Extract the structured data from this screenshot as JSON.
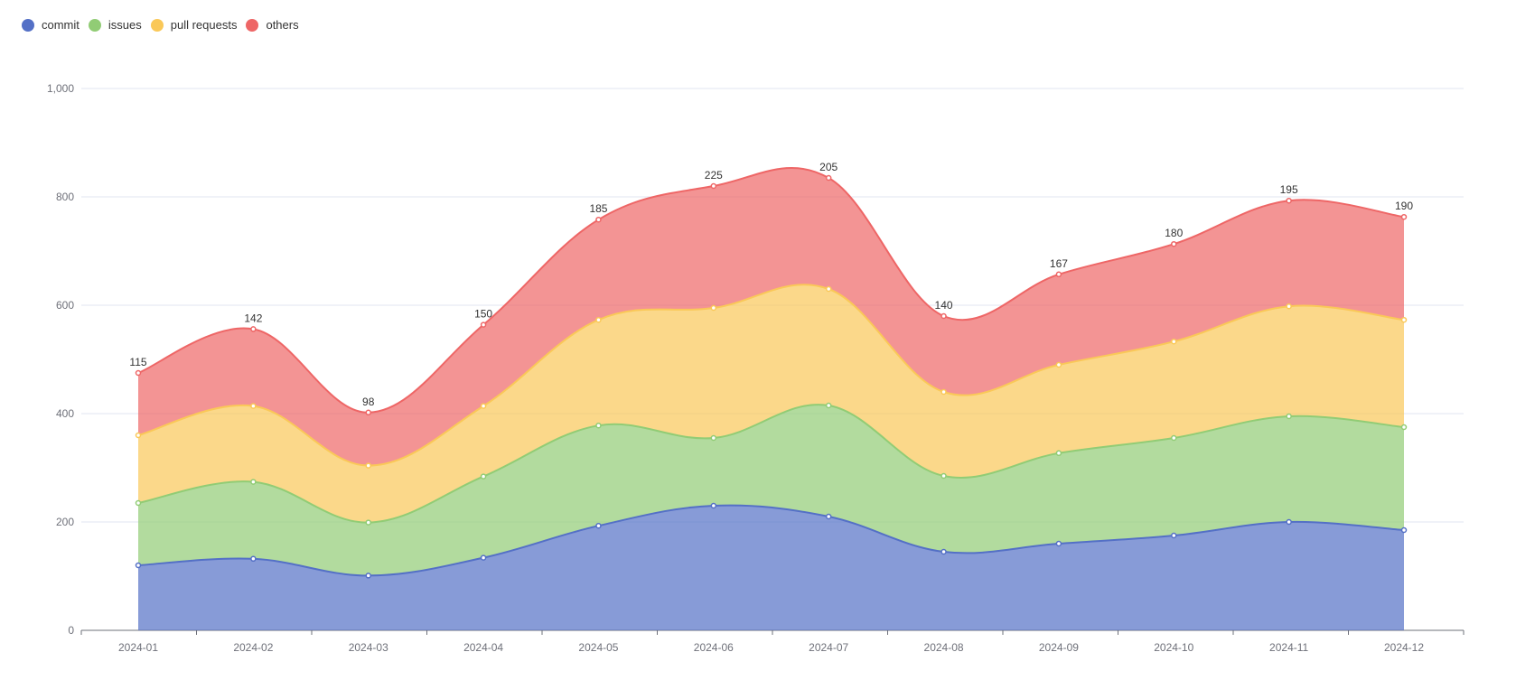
{
  "chart_data": {
    "type": "area",
    "stacked": true,
    "title": "",
    "xlabel": "",
    "ylabel": "",
    "ylim": [
      0,
      1000
    ],
    "yticks": [
      0,
      200,
      400,
      600,
      800,
      1000
    ],
    "ytick_labels": [
      "0",
      "200",
      "400",
      "600",
      "800",
      "1,000"
    ],
    "grid": true,
    "legend_position": "top-left",
    "categories": [
      "2024-01",
      "2024-02",
      "2024-03",
      "2024-04",
      "2024-05",
      "2024-06",
      "2024-07",
      "2024-08",
      "2024-09",
      "2024-10",
      "2024-11",
      "2024-12"
    ],
    "series": [
      {
        "name": "commit",
        "color": "#5470c6",
        "values": [
          120,
          132,
          101,
          134,
          193,
          230,
          210,
          145,
          160,
          175,
          200,
          185
        ]
      },
      {
        "name": "issues",
        "color": "#91cc75",
        "values": [
          115,
          142,
          98,
          150,
          185,
          125,
          205,
          140,
          167,
          180,
          195,
          190
        ]
      },
      {
        "name": "pull requests",
        "color": "#fac858",
        "values": [
          125,
          140,
          105,
          130,
          195,
          240,
          215,
          155,
          163,
          178,
          203,
          198
        ]
      },
      {
        "name": "others",
        "color": "#ee6666",
        "values": [
          115,
          142,
          98,
          150,
          185,
          225,
          205,
          140,
          167,
          180,
          195,
          190
        ]
      }
    ],
    "top_labels": [
      "115",
      "142",
      "98",
      "150",
      "185",
      "225",
      "205",
      "140",
      "167",
      "180",
      "195",
      "190"
    ]
  }
}
